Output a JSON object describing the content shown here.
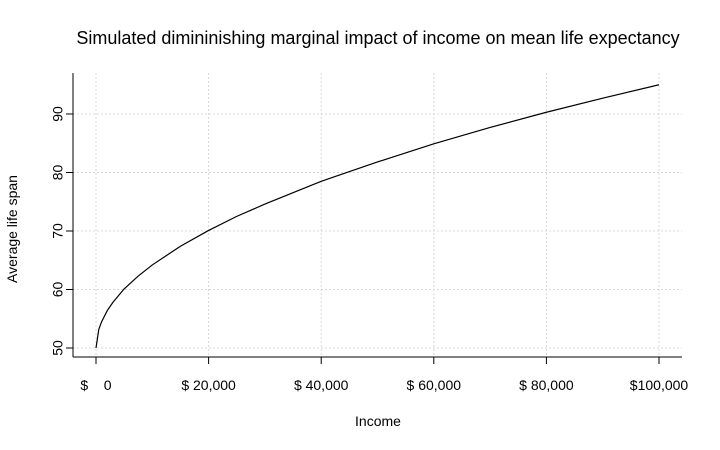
{
  "chart_data": {
    "type": "line",
    "title": "Simulated dimininishing marginal impact of income on mean life expectancy",
    "xlabel": "Income",
    "ylabel": "Average life span",
    "xlim": [
      0,
      100000
    ],
    "ylim": [
      50,
      95
    ],
    "grid": true,
    "x_ticks": [
      0,
      20000,
      40000,
      60000,
      80000,
      100000
    ],
    "x_tick_labels": [
      "$ 0",
      "$ 20,000",
      "$ 40,000",
      "$ 60,000",
      "$ 80,000",
      "$100,000"
    ],
    "y_ticks": [
      50,
      60,
      70,
      80,
      90
    ],
    "y_tick_labels": [
      "50",
      "60",
      "70",
      "80",
      "90"
    ],
    "series": [
      {
        "x": [
          0,
          500,
          1000,
          2000,
          3000,
          5000,
          7500,
          10000,
          15000,
          20000,
          25000,
          30000,
          40000,
          50000,
          60000,
          70000,
          80000,
          90000,
          100000
        ],
        "y": [
          50.0,
          53.2,
          54.5,
          56.4,
          57.8,
          60.1,
          62.3,
          64.2,
          67.4,
          70.1,
          72.5,
          74.6,
          78.5,
          81.8,
          84.9,
          87.7,
          90.3,
          92.7,
          95.0
        ]
      }
    ]
  }
}
